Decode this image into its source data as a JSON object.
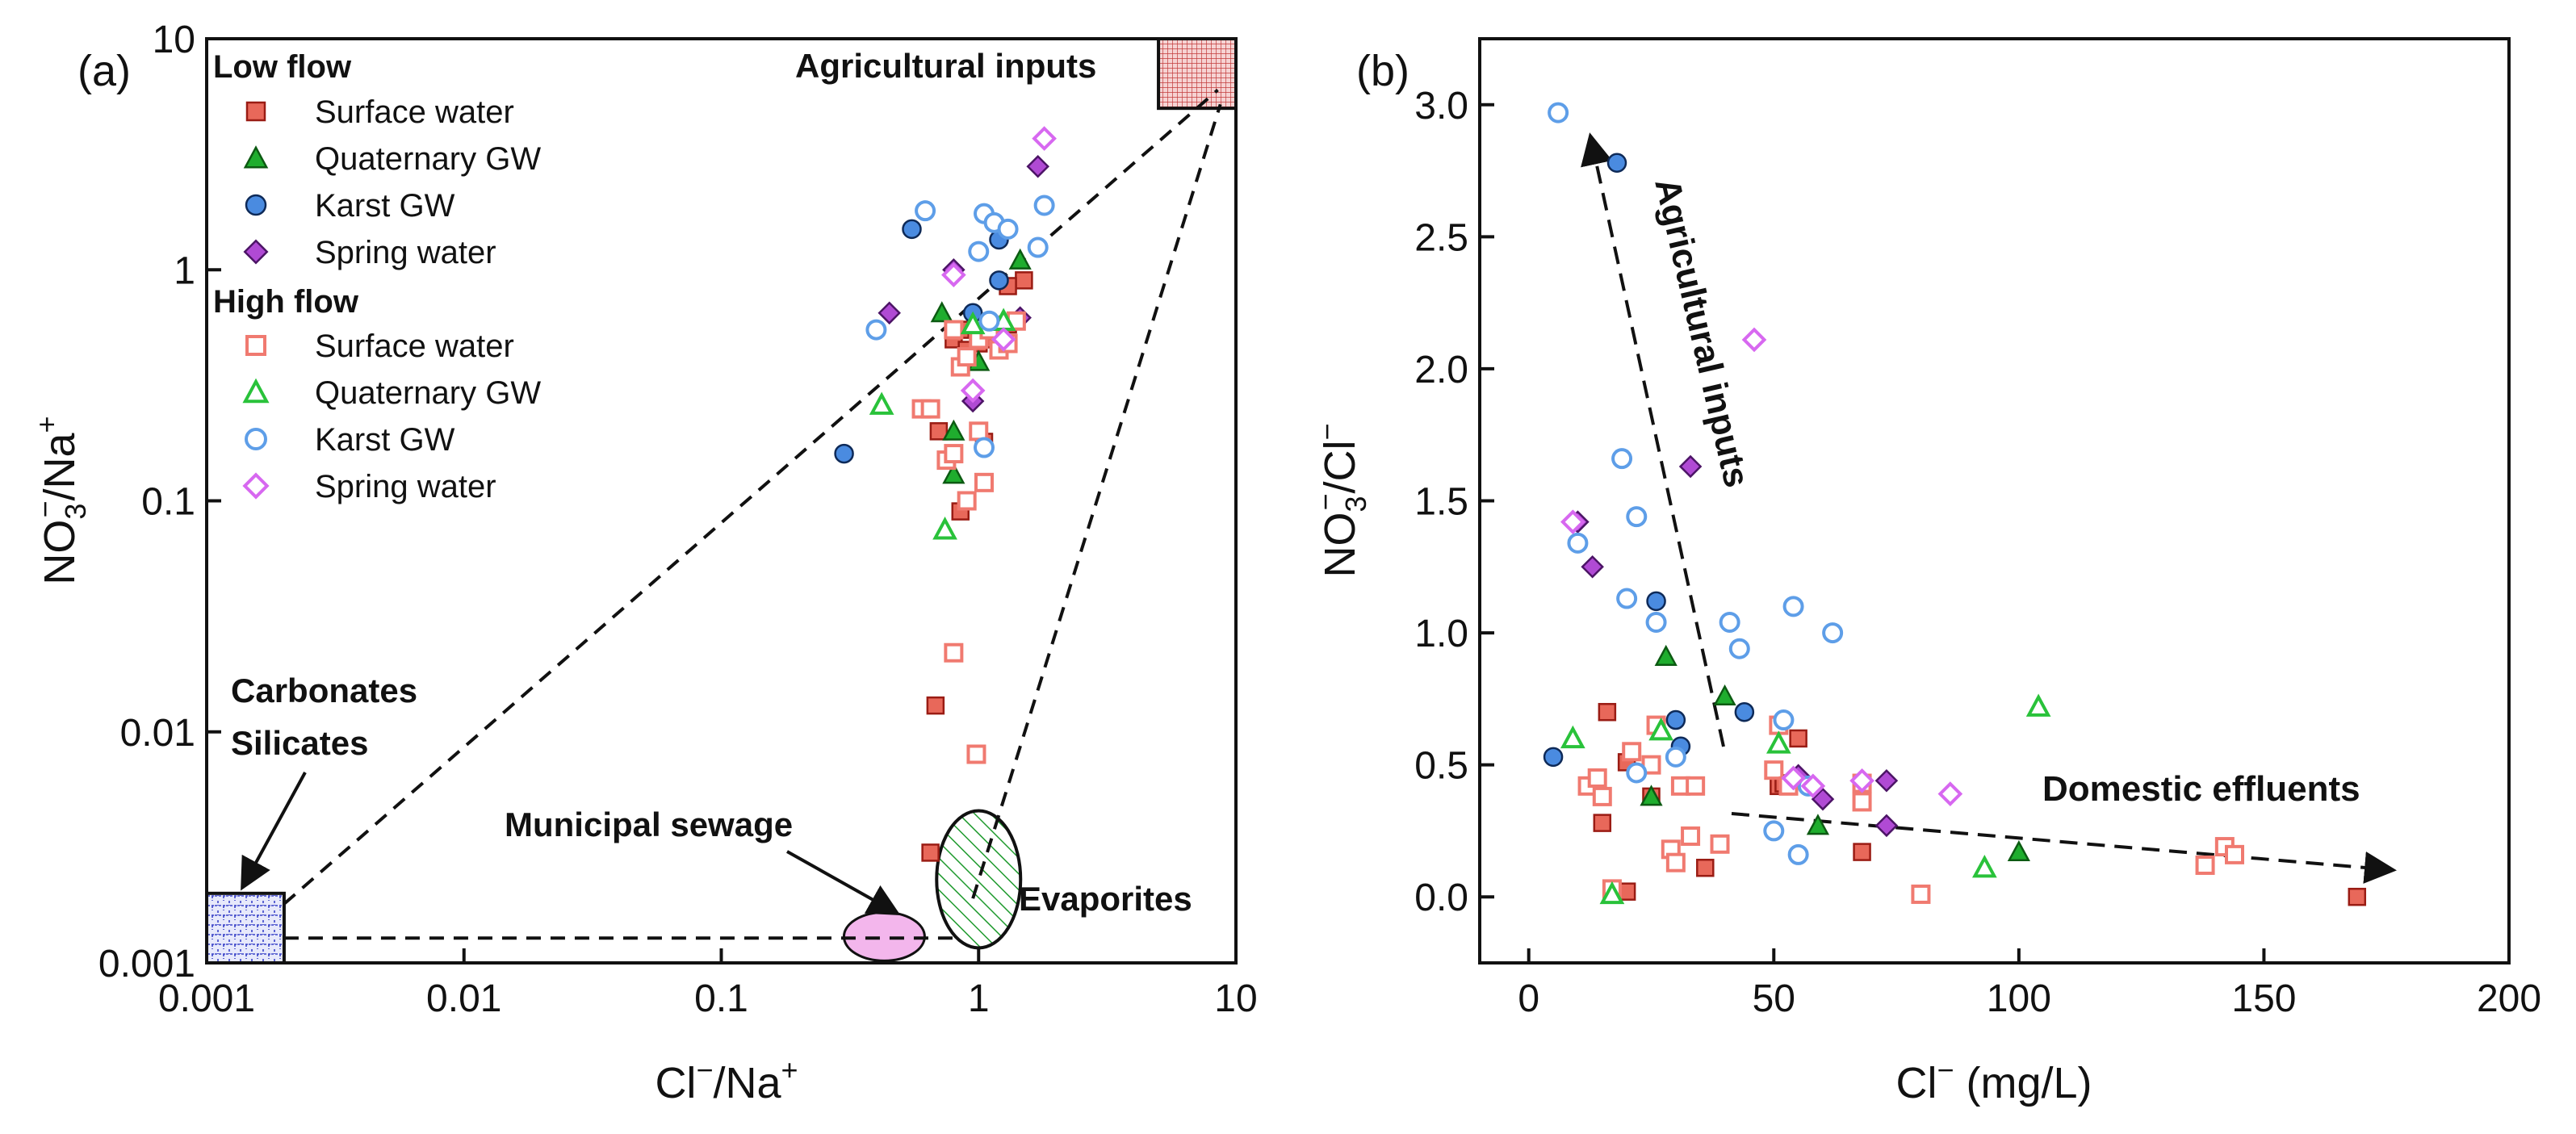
{
  "colors": {
    "red": "#e8685a",
    "red_edge": "#9a1c14",
    "green": "#1fad2e",
    "green_edge": "#0c5a12",
    "blue": "#4a8be0",
    "blue_edge": "#0e2a58",
    "purple": "#b04ad4",
    "purple_edge": "#4c1466",
    "open_red": "#f07a70",
    "open_green": "#29c23a",
    "open_blue": "#5e9ee8",
    "open_purple": "#d768f0"
  },
  "chart_data": [
    {
      "type": "scatter",
      "panel_label": "(a)",
      "xlabel": {
        "main": "Cl",
        "sup": "−",
        "post": "/Na",
        "sup2": "+"
      },
      "ylabel": {
        "main": "NO",
        "sub": "3",
        "sup": "−",
        "post": "/Na",
        "sup2": "+"
      },
      "xscale": "log",
      "yscale": "log",
      "xlim": [
        0.001,
        10
      ],
      "ylim": [
        0.001,
        10
      ],
      "xticks": [
        0.001,
        0.01,
        0.1,
        1,
        10
      ],
      "xtick_labels": [
        "0.001",
        "0.01",
        "0.1",
        "1",
        "10"
      ],
      "yticks": [
        0.001,
        0.01,
        0.1,
        1,
        10
      ],
      "ytick_labels": [
        "0.001",
        "0.01",
        "0.1",
        "1",
        "10"
      ],
      "legend": {
        "position": "top-left",
        "low_title": "Low flow",
        "high_title": "High flow",
        "entries": [
          "Surface water",
          "Quaternary GW",
          "Karst GW",
          "Spring water"
        ]
      },
      "end_members": {
        "agricultural": {
          "label": "Agricultural inputs",
          "x": [
            5,
            10
          ],
          "y": [
            5,
            10
          ]
        },
        "carbonates": {
          "label1": "Carbonates",
          "label2": "Silicates",
          "x": [
            0.001,
            0.002
          ],
          "y": [
            0.001,
            0.002
          ]
        },
        "sewage": {
          "label": "Municipal sewage",
          "cx": 0.43,
          "cy": 0.0013
        },
        "evaporites": {
          "label": "Evaporites",
          "cx": 1.0,
          "cy": 0.0023
        }
      },
      "series": [
        {
          "name": "Surface water",
          "flow": "Low flow",
          "marker": "square",
          "filled": true,
          "points": [
            [
              0.85,
              0.55
            ],
            [
              0.8,
              0.5
            ],
            [
              0.9,
              0.45
            ],
            [
              1.0,
              0.48
            ],
            [
              1.1,
              0.5
            ],
            [
              1.3,
              0.58
            ],
            [
              0.7,
              0.2
            ],
            [
              0.85,
              0.09
            ],
            [
              1.05,
              0.18
            ],
            [
              0.68,
              0.013
            ],
            [
              0.65,
              0.003
            ],
            [
              1.5,
              0.9
            ],
            [
              1.3,
              0.85
            ]
          ]
        },
        {
          "name": "Quaternary GW",
          "flow": "Low flow",
          "marker": "triangle",
          "filled": true,
          "points": [
            [
              0.72,
              0.65
            ],
            [
              0.8,
              0.2
            ],
            [
              0.8,
              0.13
            ],
            [
              1.0,
              0.4
            ],
            [
              1.45,
              1.1
            ]
          ]
        },
        {
          "name": "Karst GW",
          "flow": "Low flow",
          "marker": "circle",
          "filled": true,
          "points": [
            [
              0.55,
              1.5
            ],
            [
              1.2,
              1.35
            ],
            [
              1.2,
              0.9
            ],
            [
              0.95,
              0.65
            ],
            [
              0.3,
              0.16
            ]
          ]
        },
        {
          "name": "Spring water",
          "flow": "Low flow",
          "marker": "diamond",
          "filled": true,
          "points": [
            [
              0.45,
              0.65
            ],
            [
              0.8,
              1.0
            ],
            [
              0.95,
              0.27
            ],
            [
              1.25,
              0.5
            ],
            [
              1.45,
              0.62
            ],
            [
              1.7,
              2.8
            ]
          ]
        },
        {
          "name": "Surface water",
          "flow": "High flow",
          "marker": "square",
          "filled": false,
          "points": [
            [
              0.6,
              0.25
            ],
            [
              0.65,
              0.25
            ],
            [
              0.8,
              0.55
            ],
            [
              0.85,
              0.38
            ],
            [
              0.9,
              0.42
            ],
            [
              1.0,
              0.5
            ],
            [
              1.1,
              0.55
            ],
            [
              1.2,
              0.45
            ],
            [
              1.3,
              0.48
            ],
            [
              1.4,
              0.6
            ],
            [
              0.75,
              0.15
            ],
            [
              0.9,
              0.1
            ],
            [
              1.05,
              0.12
            ],
            [
              1.0,
              0.2
            ],
            [
              0.8,
              0.16
            ],
            [
              0.8,
              0.022
            ],
            [
              0.98,
              0.008
            ]
          ]
        },
        {
          "name": "Quaternary GW",
          "flow": "High flow",
          "marker": "triangle",
          "filled": false,
          "points": [
            [
              0.42,
              0.26
            ],
            [
              0.74,
              0.075
            ],
            [
              0.95,
              0.58
            ],
            [
              1.25,
              0.6
            ]
          ]
        },
        {
          "name": "Karst GW",
          "flow": "High flow",
          "marker": "circle",
          "filled": false,
          "points": [
            [
              0.4,
              0.55
            ],
            [
              0.62,
              1.8
            ],
            [
              1.05,
              1.75
            ],
            [
              1.15,
              1.6
            ],
            [
              1.3,
              1.5
            ],
            [
              1.7,
              1.25
            ],
            [
              1.8,
              1.9
            ],
            [
              1.0,
              1.2
            ],
            [
              1.1,
              0.6
            ],
            [
              1.05,
              0.17
            ]
          ]
        },
        {
          "name": "Spring water",
          "flow": "High flow",
          "marker": "diamond",
          "filled": false,
          "points": [
            [
              0.8,
              0.95
            ],
            [
              1.25,
              0.5
            ],
            [
              1.8,
              3.7
            ],
            [
              0.95,
              0.3
            ]
          ]
        }
      ]
    },
    {
      "type": "scatter",
      "panel_label": "(b)",
      "xlabel": {
        "main": "Cl",
        "sup": "−",
        "post": " (mg/L)"
      },
      "ylabel": {
        "main": "NO",
        "sub": "3",
        "sup": "−",
        "post": "/Cl",
        "sup2": "−"
      },
      "xscale": "linear",
      "yscale": "linear",
      "xlim": [
        -10,
        200
      ],
      "ylim": [
        -0.25,
        3.25
      ],
      "xticks": [
        0,
        50,
        100,
        150,
        200
      ],
      "xtick_labels": [
        "0",
        "50",
        "100",
        "150",
        "200"
      ],
      "yticks": [
        0,
        0.5,
        1.0,
        1.5,
        2.0,
        2.5,
        3.0
      ],
      "ytick_labels": [
        "0.0",
        "0.5",
        "1.0",
        "1.5",
        "2.0",
        "2.5",
        "3.0"
      ],
      "annotations": {
        "agricultural": "Agricultural inputs",
        "domestic": "Domestic effluents"
      },
      "series": [
        {
          "name": "Surface water",
          "flow": "Low flow",
          "marker": "square",
          "filled": true,
          "points": [
            [
              16,
              0.7
            ],
            [
              15,
              0.28
            ],
            [
              20,
              0.02
            ],
            [
              20,
              0.51
            ],
            [
              25,
              0.38
            ],
            [
              36,
              0.11
            ],
            [
              51,
              0.42
            ],
            [
              52,
              0.43
            ],
            [
              55,
              0.6
            ],
            [
              68,
              0.17
            ],
            [
              169,
              0.0
            ]
          ]
        },
        {
          "name": "Quaternary GW",
          "flow": "Low flow",
          "marker": "triangle",
          "filled": true,
          "points": [
            [
              25,
              0.38
            ],
            [
              28,
              0.91
            ],
            [
              40,
              0.76
            ],
            [
              59,
              0.27
            ],
            [
              100,
              0.17
            ]
          ]
        },
        {
          "name": "Karst GW",
          "flow": "Low flow",
          "marker": "circle",
          "filled": true,
          "points": [
            [
              5,
              0.53
            ],
            [
              18,
              2.78
            ],
            [
              26,
              1.12
            ],
            [
              30,
              0.67
            ],
            [
              31,
              0.57
            ],
            [
              44,
              0.7
            ]
          ]
        },
        {
          "name": "Spring water",
          "flow": "Low flow",
          "marker": "diamond",
          "filled": true,
          "points": [
            [
              10,
              1.42
            ],
            [
              13,
              1.25
            ],
            [
              33,
              1.63
            ],
            [
              55,
              0.46
            ],
            [
              60,
              0.37
            ],
            [
              73,
              0.44
            ],
            [
              73,
              0.27
            ]
          ]
        },
        {
          "name": "Surface water",
          "flow": "High flow",
          "marker": "square",
          "filled": false,
          "points": [
            [
              12,
              0.42
            ],
            [
              14,
              0.45
            ],
            [
              15,
              0.38
            ],
            [
              17,
              0.03
            ],
            [
              21,
              0.55
            ],
            [
              25,
              0.5
            ],
            [
              26,
              0.65
            ],
            [
              29,
              0.18
            ],
            [
              30,
              0.13
            ],
            [
              31,
              0.42
            ],
            [
              33,
              0.23
            ],
            [
              34,
              0.42
            ],
            [
              39,
              0.2
            ],
            [
              50,
              0.48
            ],
            [
              51,
              0.65
            ],
            [
              53,
              0.42
            ],
            [
              68,
              0.43
            ],
            [
              68,
              0.36
            ],
            [
              80,
              0.01
            ],
            [
              138,
              0.12
            ],
            [
              142,
              0.19
            ],
            [
              144,
              0.16
            ]
          ]
        },
        {
          "name": "Quaternary GW",
          "flow": "High flow",
          "marker": "triangle",
          "filled": false,
          "points": [
            [
              9,
              0.6
            ],
            [
              17,
              0.01
            ],
            [
              27,
              0.63
            ],
            [
              51,
              0.58
            ],
            [
              93,
              0.11
            ],
            [
              104,
              0.72
            ]
          ]
        },
        {
          "name": "Karst GW",
          "flow": "High flow",
          "marker": "circle",
          "filled": false,
          "points": [
            [
              6,
              2.97
            ],
            [
              10,
              1.34
            ],
            [
              19,
              1.66
            ],
            [
              20,
              1.13
            ],
            [
              22,
              1.44
            ],
            [
              22,
              0.47
            ],
            [
              26,
              1.04
            ],
            [
              30,
              0.53
            ],
            [
              41,
              1.04
            ],
            [
              43,
              0.94
            ],
            [
              50,
              0.25
            ],
            [
              52,
              0.67
            ],
            [
              54,
              1.1
            ],
            [
              55,
              0.16
            ],
            [
              57,
              0.42
            ],
            [
              62,
              1.0
            ]
          ]
        },
        {
          "name": "Spring water",
          "flow": "High flow",
          "marker": "diamond",
          "filled": false,
          "points": [
            [
              9,
              1.42
            ],
            [
              46,
              2.11
            ],
            [
              54,
              0.45
            ],
            [
              58,
              0.42
            ],
            [
              68,
              0.44
            ],
            [
              86,
              0.39
            ]
          ]
        }
      ]
    }
  ]
}
